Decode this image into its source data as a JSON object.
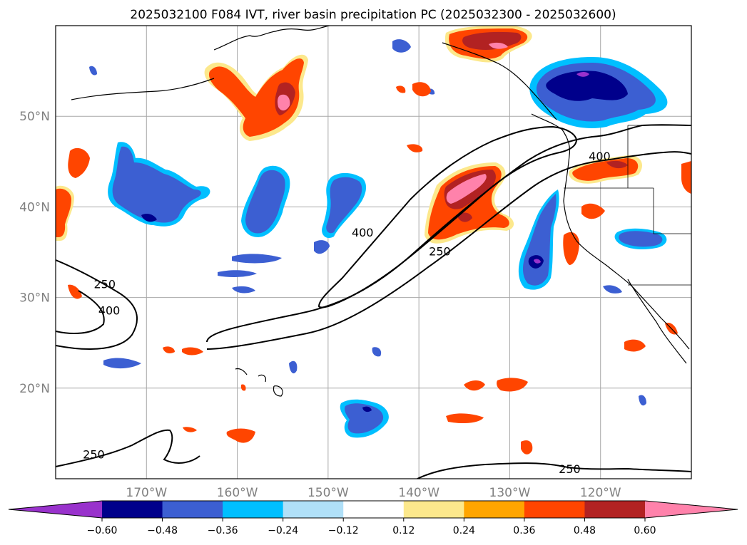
{
  "title": "2025032100 F084 IVT, river basin precipitation PC (2025032300 - 2025032600)",
  "map": {
    "lon_range": [
      -180,
      -110
    ],
    "lat_range": [
      10,
      60
    ],
    "lat_ticks": [
      {
        "value": 50,
        "label": "50°N"
      },
      {
        "value": 40,
        "label": "40°N"
      },
      {
        "value": 30,
        "label": "30°N"
      },
      {
        "value": 20,
        "label": "20°N"
      }
    ],
    "lon_ticks": [
      {
        "value": -170,
        "label": "170°W"
      },
      {
        "value": -160,
        "label": "160°W"
      },
      {
        "value": -150,
        "label": "150°W"
      },
      {
        "value": -140,
        "label": "140°W"
      },
      {
        "value": -130,
        "label": "130°W"
      },
      {
        "value": -120,
        "label": "120°W"
      }
    ],
    "gridlines": true,
    "contour_labels": [
      {
        "text": "250",
        "lon": -174.6,
        "lat": 31.5
      },
      {
        "text": "400",
        "lon": -174.1,
        "lat": 28.6
      },
      {
        "text": "400",
        "lon": -146.2,
        "lat": 37.2
      },
      {
        "text": "250",
        "lon": -137.7,
        "lat": 35.1
      },
      {
        "text": "400",
        "lon": -120.1,
        "lat": 45.6
      },
      {
        "text": "250",
        "lon": -175.8,
        "lat": 12.7
      },
      {
        "text": "250",
        "lon": -123.4,
        "lat": 11.1
      }
    ]
  },
  "colorbar": {
    "colors": [
      "#9932cc",
      "#00008b",
      "#3c5fd2",
      "#00bfff",
      "#b0e0f8",
      "#ffffff",
      "#fce88c",
      "#ffa500",
      "#ff4500",
      "#b22222",
      "#ff82ab"
    ],
    "labels": [
      "−0.60",
      "−0.48",
      "−0.36",
      "−0.24",
      "−0.12",
      "0.12",
      "0.24",
      "0.36",
      "0.48",
      "0.60"
    ]
  }
}
